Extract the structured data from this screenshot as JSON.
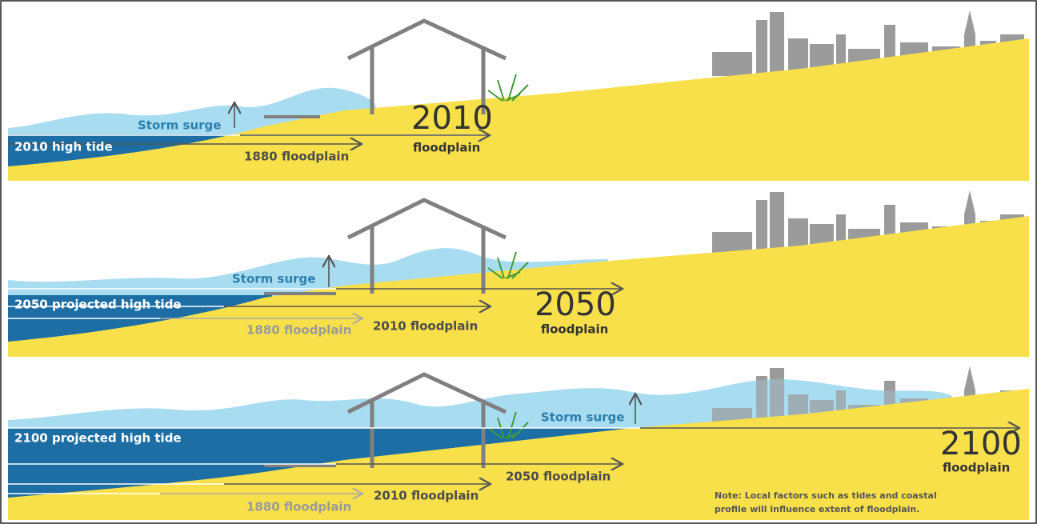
{
  "panels": [
    {
      "storm_surge": "Storm surge",
      "high_tide": "2010 high tide",
      "floodplains": [
        "1880 floodplain"
      ],
      "year": "2010",
      "floodplain_word": "floodplain"
    },
    {
      "storm_surge": "Storm surge",
      "high_tide": "2050 projected high tide",
      "floodplains": [
        "1880 floodplain",
        "2010 floodplain"
      ],
      "year": "2050",
      "floodplain_word": "floodplain"
    },
    {
      "storm_surge": "Storm surge",
      "high_tide": "2100 projected high tide",
      "floodplains": [
        "1880 floodplain",
        "2010 floodplain",
        "2050 floodplain"
      ],
      "year": "2100",
      "floodplain_word": "floodplain",
      "note": [
        "Note: Local factors such as tides and coastal",
        "profile will influence extent of floodplain."
      ]
    }
  ]
}
